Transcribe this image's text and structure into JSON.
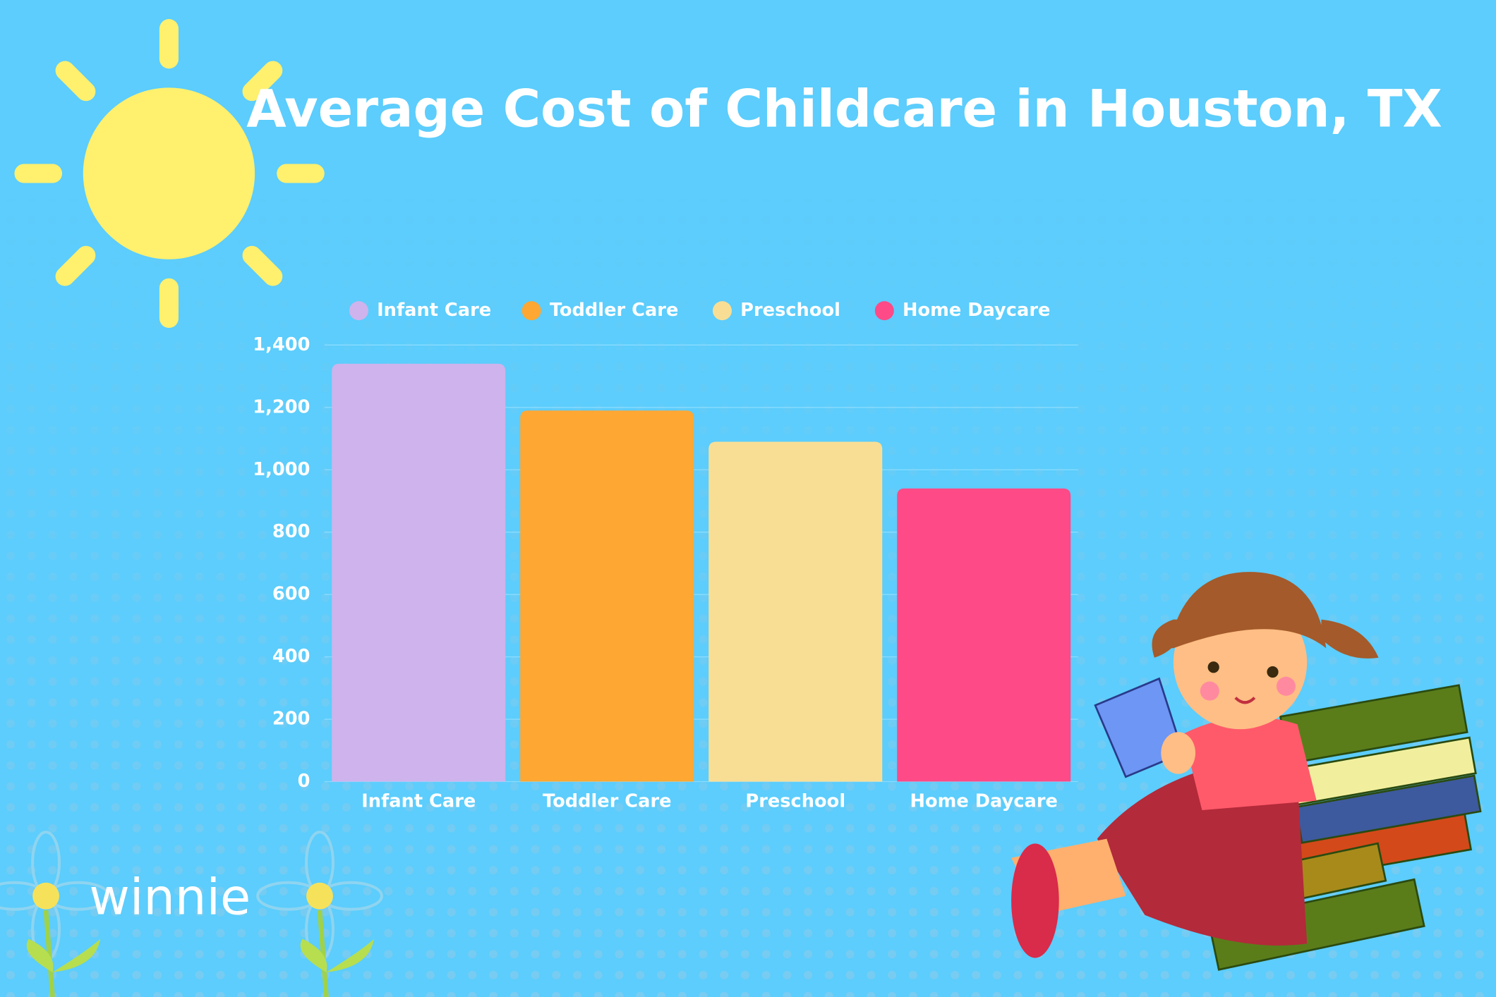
{
  "chart_data": {
    "type": "bar",
    "title": "Average Cost of Childcare in Houston, TX",
    "categories": [
      "Infant Care",
      "Toddler Care",
      "Preschool",
      "Home Daycare"
    ],
    "values": [
      1340,
      1190,
      1090,
      940
    ],
    "colors": [
      "#cfb3ec",
      "#ffa733",
      "#f8de95",
      "#ff4a88"
    ],
    "ylim": [
      0,
      1400
    ],
    "yticks": [
      0,
      200,
      400,
      600,
      800,
      {
        "value": 1000,
        "label": "1,000"
      },
      {
        "value": 1200,
        "label": "1,200"
      },
      {
        "value": 1400,
        "label": "1,400"
      }
    ],
    "grid": true,
    "legend": "top"
  },
  "logo": "winnie"
}
